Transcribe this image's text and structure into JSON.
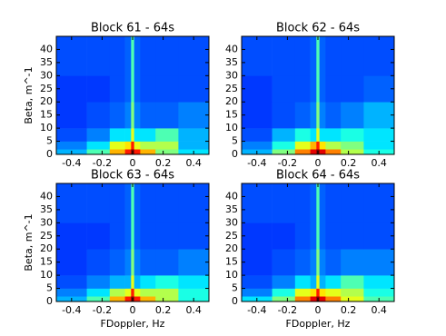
{
  "chart_data": [
    {
      "type": "heatmap",
      "title": "Block 61 - 64s",
      "ylabel": "Beta, m^-1",
      "colormap": "jet",
      "clim": [
        0,
        1
      ],
      "xbins": [
        -0.5,
        -0.3,
        -0.15,
        -0.05,
        -0.01,
        0.01,
        0.05,
        0.15,
        0.3,
        0.5
      ],
      "ybins": [
        0,
        2,
        5,
        10,
        20,
        30,
        45
      ],
      "values": [
        [
          0.3,
          0.45,
          0.7,
          0.85,
          1.0,
          0.85,
          0.7,
          0.5,
          0.35
        ],
        [
          0.25,
          0.35,
          0.6,
          0.65,
          0.85,
          0.6,
          0.55,
          0.55,
          0.3
        ],
        [
          0.2,
          0.25,
          0.35,
          0.35,
          0.6,
          0.35,
          0.35,
          0.45,
          0.3
        ],
        [
          0.18,
          0.2,
          0.22,
          0.25,
          0.5,
          0.25,
          0.22,
          0.22,
          0.25
        ],
        [
          0.18,
          0.18,
          0.2,
          0.22,
          0.45,
          0.22,
          0.2,
          0.2,
          0.2
        ],
        [
          0.2,
          0.2,
          0.2,
          0.22,
          0.45,
          0.22,
          0.2,
          0.2,
          0.2
        ]
      ],
      "xlim": [
        -0.5,
        0.5
      ],
      "ylim": [
        0,
        45
      ],
      "xticks": [
        -0.4,
        -0.2,
        0.0,
        0.2,
        0.4
      ],
      "yticks": [
        0,
        5,
        10,
        15,
        20,
        25,
        30,
        35,
        40
      ]
    },
    {
      "type": "heatmap",
      "title": "Block 62 - 64s",
      "colormap": "jet",
      "clim": [
        0,
        1
      ],
      "xbins": [
        -0.5,
        -0.3,
        -0.15,
        -0.05,
        -0.01,
        0.01,
        0.05,
        0.15,
        0.3,
        0.5
      ],
      "ybins": [
        0,
        2,
        5,
        10,
        20,
        30,
        45
      ],
      "values": [
        [
          0.3,
          0.5,
          0.75,
          0.9,
          1.0,
          0.9,
          0.75,
          0.55,
          0.4
        ],
        [
          0.25,
          0.4,
          0.6,
          0.7,
          0.85,
          0.65,
          0.55,
          0.5,
          0.35
        ],
        [
          0.2,
          0.3,
          0.4,
          0.35,
          0.6,
          0.35,
          0.35,
          0.4,
          0.35
        ],
        [
          0.18,
          0.2,
          0.22,
          0.25,
          0.5,
          0.25,
          0.22,
          0.25,
          0.3
        ],
        [
          0.18,
          0.2,
          0.2,
          0.22,
          0.45,
          0.22,
          0.2,
          0.2,
          0.22
        ],
        [
          0.2,
          0.2,
          0.2,
          0.22,
          0.45,
          0.22,
          0.2,
          0.2,
          0.2
        ]
      ],
      "xlim": [
        -0.5,
        0.5
      ],
      "ylim": [
        0,
        45
      ],
      "xticks": [
        -0.4,
        -0.2,
        0.0,
        0.2,
        0.4
      ],
      "yticks": [
        0,
        5,
        10,
        15,
        20,
        25,
        30,
        35,
        40
      ]
    },
    {
      "type": "heatmap",
      "title": "Block 63 - 64s",
      "ylabel": "Beta, m^-1",
      "xlabel": "FDoppler, Hz",
      "colormap": "jet",
      "clim": [
        0,
        1
      ],
      "xbins": [
        -0.5,
        -0.3,
        -0.15,
        -0.05,
        -0.01,
        0.01,
        0.05,
        0.15,
        0.3,
        0.5
      ],
      "ybins": [
        0,
        2,
        5,
        10,
        20,
        30,
        45
      ],
      "values": [
        [
          0.3,
          0.45,
          0.7,
          0.85,
          1.0,
          0.85,
          0.7,
          0.55,
          0.4
        ],
        [
          0.25,
          0.35,
          0.55,
          0.6,
          0.85,
          0.6,
          0.55,
          0.55,
          0.4
        ],
        [
          0.2,
          0.25,
          0.3,
          0.3,
          0.6,
          0.3,
          0.35,
          0.4,
          0.35
        ],
        [
          0.18,
          0.2,
          0.22,
          0.25,
          0.5,
          0.25,
          0.22,
          0.22,
          0.25
        ],
        [
          0.18,
          0.18,
          0.2,
          0.22,
          0.45,
          0.22,
          0.2,
          0.2,
          0.2
        ],
        [
          0.2,
          0.2,
          0.2,
          0.22,
          0.45,
          0.22,
          0.2,
          0.2,
          0.2
        ]
      ],
      "xlim": [
        -0.5,
        0.5
      ],
      "ylim": [
        0,
        45
      ],
      "xticks": [
        -0.4,
        -0.2,
        0.0,
        0.2,
        0.4
      ],
      "yticks": [
        0,
        5,
        10,
        15,
        20,
        25,
        30,
        35,
        40
      ]
    },
    {
      "type": "heatmap",
      "title": "Block 64 - 64s",
      "xlabel": "FDoppler, Hz",
      "colormap": "jet",
      "clim": [
        0,
        1
      ],
      "xbins": [
        -0.5,
        -0.3,
        -0.15,
        -0.05,
        -0.01,
        0.01,
        0.05,
        0.15,
        0.3,
        0.5
      ],
      "ybins": [
        0,
        2,
        5,
        10,
        20,
        30,
        45
      ],
      "values": [
        [
          0.35,
          0.5,
          0.75,
          0.9,
          1.0,
          0.9,
          0.75,
          0.6,
          0.45
        ],
        [
          0.25,
          0.4,
          0.6,
          0.65,
          0.85,
          0.65,
          0.6,
          0.55,
          0.4
        ],
        [
          0.2,
          0.25,
          0.35,
          0.3,
          0.6,
          0.3,
          0.35,
          0.45,
          0.35
        ],
        [
          0.18,
          0.2,
          0.22,
          0.25,
          0.5,
          0.25,
          0.22,
          0.25,
          0.25
        ],
        [
          0.18,
          0.18,
          0.2,
          0.22,
          0.45,
          0.22,
          0.2,
          0.2,
          0.2
        ],
        [
          0.2,
          0.2,
          0.2,
          0.22,
          0.45,
          0.22,
          0.2,
          0.2,
          0.2
        ]
      ],
      "xlim": [
        -0.5,
        0.5
      ],
      "ylim": [
        0,
        45
      ],
      "xticks": [
        -0.4,
        -0.2,
        0.0,
        0.2,
        0.4
      ],
      "yticks": [
        0,
        5,
        10,
        15,
        20,
        25,
        30,
        35,
        40
      ]
    }
  ]
}
